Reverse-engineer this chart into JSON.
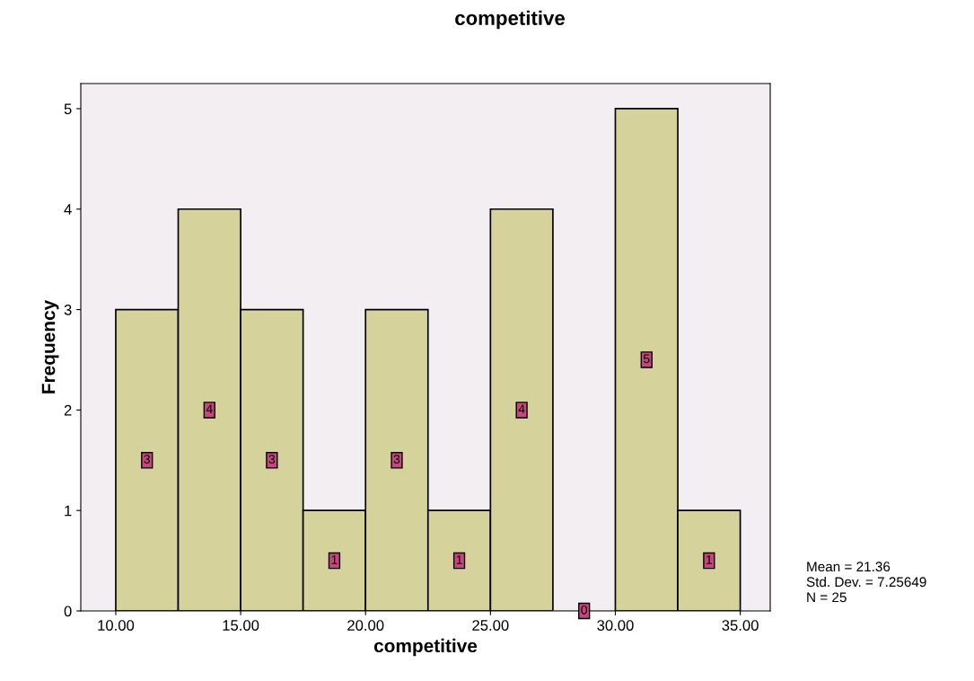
{
  "chart_data": {
    "type": "histogram",
    "title": "competitive",
    "xlabel": "competitive",
    "ylabel": "Frequency",
    "bins": [
      10,
      12.5,
      15,
      17.5,
      20,
      22.5,
      25,
      27.5,
      30,
      32.5,
      35
    ],
    "values": [
      3,
      4,
      3,
      1,
      3,
      1,
      4,
      0,
      5,
      1
    ],
    "color": "#d5d29b",
    "data_labels": true,
    "xlim": [
      8.6,
      36.2
    ],
    "ylim": [
      0,
      5.25
    ],
    "xticks": [
      {
        "value": 10,
        "label": "10.00"
      },
      {
        "value": 15,
        "label": "15.00"
      },
      {
        "value": 20,
        "label": "20.00"
      },
      {
        "value": 25,
        "label": "25.00"
      },
      {
        "value": 30,
        "label": "30.00"
      },
      {
        "value": 35,
        "label": "35.00"
      }
    ],
    "yticks": [
      0,
      1,
      2,
      3,
      4,
      5
    ],
    "grid": false,
    "legend": false,
    "annotations": [
      "Mean = 21.36",
      "Std. Dev. = 7.25649",
      "N = 25"
    ]
  }
}
